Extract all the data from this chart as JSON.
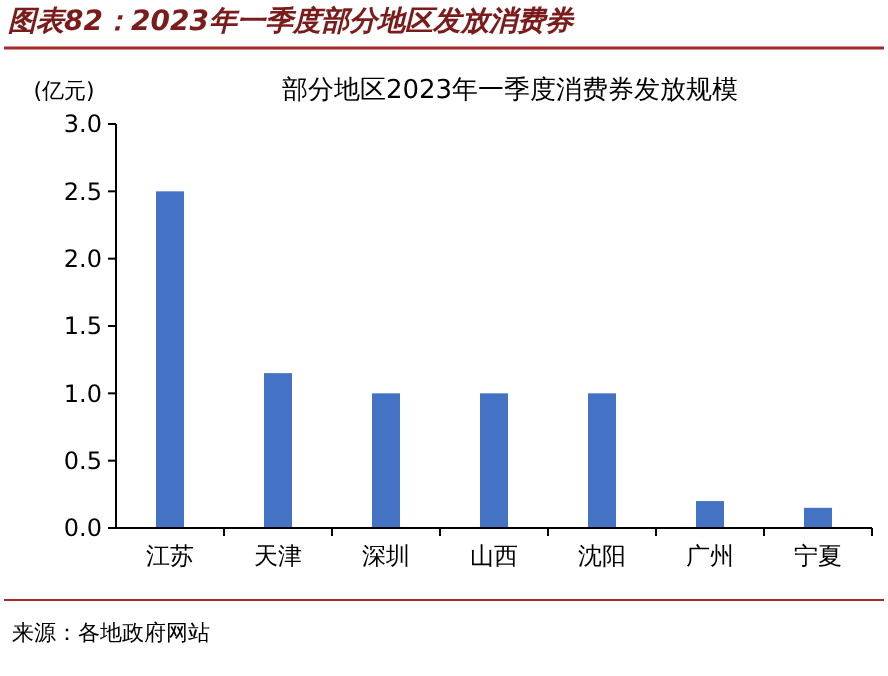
{
  "chart_data": {
    "type": "bar",
    "title": "图表82：2023年一季度部分地区发放消费券",
    "subtitle": "部分地区2023年一季度消费券发放规模",
    "ylabel": "(亿元)",
    "categories": [
      "江苏",
      "天津",
      "深圳",
      "山西",
      "沈阳",
      "广州",
      "宁夏"
    ],
    "values": [
      2.5,
      1.15,
      1.0,
      1.0,
      1.0,
      0.2,
      0.15
    ],
    "color": "#4472c4",
    "ylim": [
      0,
      3
    ],
    "yticks": [
      {
        "value": 0,
        "label": "0.0"
      },
      {
        "value": 0.5,
        "label": "0.5"
      },
      {
        "value": 1,
        "label": "1.0"
      },
      {
        "value": 1.5,
        "label": "1.5"
      },
      {
        "value": 2,
        "label": "2.0"
      },
      {
        "value": 2.5,
        "label": "2.5"
      },
      {
        "value": 3,
        "label": "3.0"
      }
    ],
    "grid": false,
    "annotations": [
      "来源：各地政府网站"
    ]
  }
}
